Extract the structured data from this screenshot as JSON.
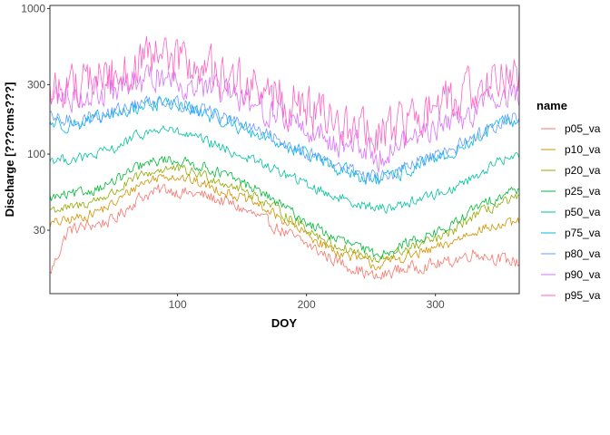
{
  "chart_data": {
    "type": "line",
    "xlabel": "DOY",
    "ylabel": "Discharge [???cms???]",
    "xlim": [
      1,
      365
    ],
    "ylim": [
      11,
      1050
    ],
    "y_scale": "log10",
    "x_ticks": [
      100,
      200,
      300
    ],
    "x_tick_labels": [
      "100",
      "200",
      "300"
    ],
    "y_ticks": [
      30,
      100,
      300,
      1000
    ],
    "y_tick_labels": [
      "30",
      "100",
      "300",
      "1000"
    ],
    "grid": false,
    "legend_title": "name",
    "legend_position": "right",
    "x_knots": [
      1,
      15,
      30,
      50,
      70,
      90,
      100,
      120,
      140,
      160,
      180,
      200,
      220,
      240,
      255,
      270,
      290,
      310,
      330,
      350,
      365
    ],
    "series": [
      {
        "name": "p05_va",
        "color": "#F8766D",
        "noise": 0.06,
        "values": [
          15,
          30,
          32,
          35,
          50,
          58,
          55,
          52,
          46,
          38,
          30,
          24,
          19,
          16,
          14,
          16,
          17,
          18,
          21,
          19,
          18
        ]
      },
      {
        "name": "p10_va",
        "color": "#D39200",
        "noise": 0.05,
        "values": [
          33,
          35,
          38,
          45,
          62,
          72,
          70,
          62,
          54,
          46,
          36,
          28,
          22,
          19,
          17,
          19,
          21,
          24,
          30,
          32,
          34
        ]
      },
      {
        "name": "p20_va",
        "color": "#93AA00",
        "noise": 0.05,
        "values": [
          42,
          42,
          46,
          54,
          70,
          80,
          78,
          72,
          62,
          52,
          40,
          31,
          24,
          21,
          18,
          21,
          24,
          28,
          38,
          45,
          50
        ]
      },
      {
        "name": "p25_va",
        "color": "#00BA38",
        "noise": 0.05,
        "values": [
          50,
          52,
          55,
          64,
          82,
          92,
          90,
          82,
          70,
          58,
          45,
          34,
          27,
          23,
          20,
          23,
          27,
          31,
          42,
          52,
          58
        ]
      },
      {
        "name": "p50_va",
        "color": "#00C19F",
        "noise": 0.05,
        "values": [
          92,
          92,
          95,
          108,
          135,
          150,
          140,
          124,
          105,
          90,
          75,
          62,
          52,
          46,
          42,
          44,
          50,
          56,
          70,
          90,
          98
        ]
      },
      {
        "name": "p75_va",
        "color": "#00B9E3",
        "noise": 0.07,
        "values": [
          165,
          160,
          165,
          185,
          210,
          228,
          215,
          192,
          165,
          140,
          118,
          100,
          82,
          72,
          65,
          72,
          85,
          98,
          125,
          160,
          170
        ]
      },
      {
        "name": "p80_va",
        "color": "#619CFF",
        "noise": 0.07,
        "values": [
          175,
          170,
          175,
          195,
          220,
          240,
          225,
          200,
          172,
          146,
          122,
          104,
          86,
          75,
          68,
          75,
          90,
          102,
          132,
          168,
          180
        ]
      },
      {
        "name": "p90_va",
        "color": "#DB72FB",
        "noise": 0.14,
        "values": [
          240,
          250,
          255,
          270,
          310,
          350,
          320,
          285,
          250,
          215,
          185,
          150,
          125,
          112,
          98,
          112,
          142,
          160,
          200,
          250,
          260
        ]
      },
      {
        "name": "p95_va",
        "color": "#FF61C3",
        "noise": 0.22,
        "values": [
          260,
          300,
          320,
          350,
          400,
          460,
          440,
          380,
          330,
          280,
          240,
          200,
          170,
          150,
          130,
          150,
          190,
          220,
          280,
          350,
          360
        ]
      }
    ]
  }
}
